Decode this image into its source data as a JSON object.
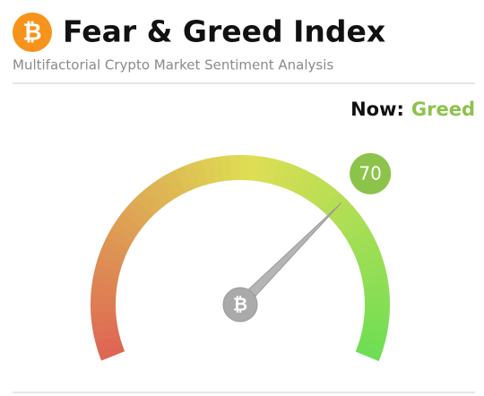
{
  "chart_data": {
    "type": "gauge",
    "logo": "₿",
    "title": "Fear & Greed Index",
    "subtitle": "Multifactorial Crypto Market Sentiment Analysis",
    "now_label": "Now:",
    "status": "Greed",
    "status_color": "#8cc34a",
    "value": 70,
    "ylim": [
      0,
      100
    ]
  }
}
